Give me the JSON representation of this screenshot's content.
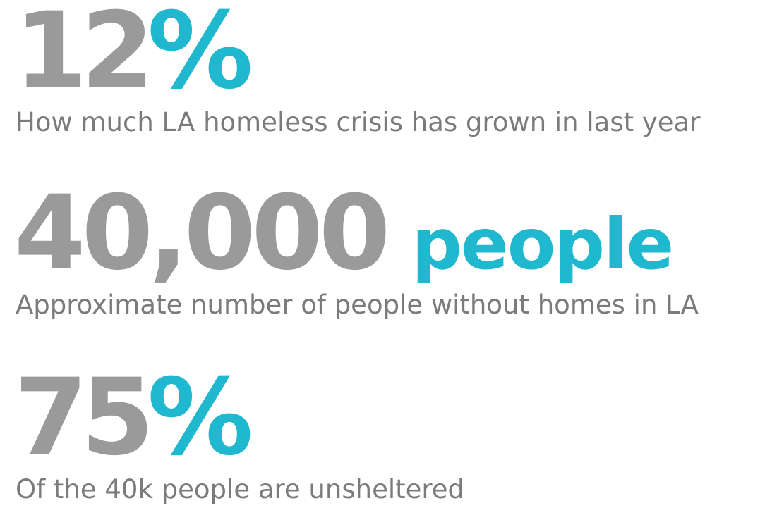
{
  "colors": {
    "number": "#9a9a9a",
    "accent": "#1fb8cf",
    "caption": "#7b7b7b"
  },
  "stats": [
    {
      "number": "12",
      "unit": "%",
      "caption": "How much LA homeless crisis has grown in last year"
    },
    {
      "number": "40,000",
      "unit": "people",
      "caption": "Approximate number of people without homes in LA"
    },
    {
      "number": "75",
      "unit": "%",
      "caption": "Of the 40k people are unsheltered"
    }
  ]
}
